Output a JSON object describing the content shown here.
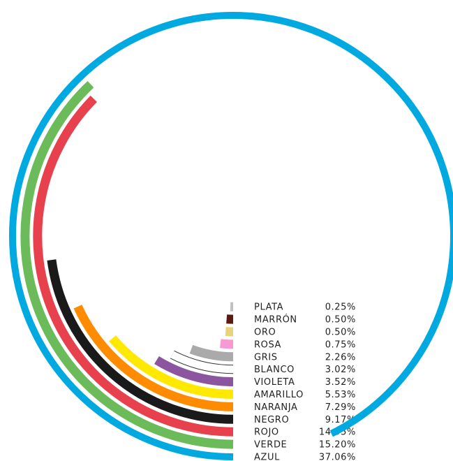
{
  "chart_data": {
    "type": "radial-bar",
    "categories": [
      "PLATA",
      "MARRÓN",
      "ORO",
      "ROSA",
      "GRIS",
      "BLANCO",
      "VIOLETA",
      "AMARILLO",
      "NARANJA",
      "NEGRO",
      "ROJO",
      "VERDE",
      "AZUL"
    ],
    "values": [
      0.25,
      0.5,
      0.5,
      0.75,
      2.26,
      3.02,
      3.52,
      5.53,
      7.29,
      9.17,
      14.95,
      15.2,
      37.06
    ],
    "value_labels": [
      "0.25%",
      "0.50%",
      "0.50%",
      "0.75%",
      "2.26%",
      "3.02%",
      "3.52%",
      "5.53%",
      "7.29%",
      "9.17%",
      "14.95%",
      "15.20%",
      "37.06%"
    ],
    "colors": [
      "#c0c0c0",
      "#5a1a0e",
      "#e8d27a",
      "#f79ad3",
      "#aaaaaa",
      "#ffffff",
      "#8b559f",
      "#ffe900",
      "#ff8c00",
      "#1a1a1a",
      "#e8414e",
      "#6cbb5a",
      "#00a9e0"
    ],
    "max_value": 40,
    "unit": "%"
  }
}
